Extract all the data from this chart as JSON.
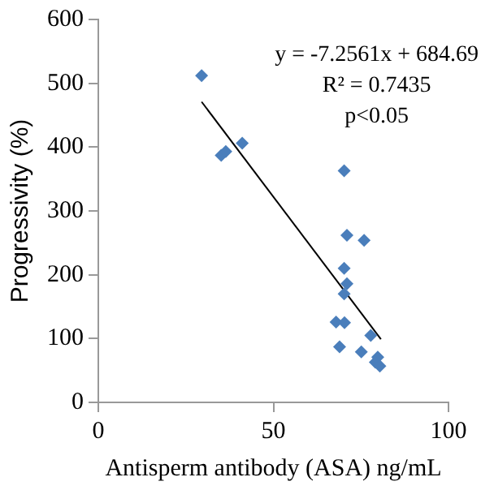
{
  "chart_data": {
    "type": "scatter",
    "xlabel": "Antisperm antibody (ASA) ng/mL",
    "ylabel": "Progressivity (%)",
    "annotations": [
      "y = -7.2561x + 684.69",
      "R² = 0.7435",
      "p<0.05"
    ],
    "xlim": [
      0,
      100
    ],
    "xticks": [
      0,
      50,
      100
    ],
    "ylim": [
      0,
      600
    ],
    "yticks": [
      0,
      100,
      200,
      300,
      400,
      500,
      600
    ],
    "grid": false,
    "legend": false,
    "marker": "diamond",
    "series": [
      {
        "type": "scatter",
        "color": "#4a7ebb",
        "x": [
          29.5,
          35.1,
          36.4,
          41.1,
          70.2,
          71,
          75.9,
          70.2,
          71,
          70.2,
          67.9,
          70.3,
          77.8,
          68.9,
          75.1,
          79.8,
          79.1,
          80.4
        ],
        "values": [
          512,
          387,
          393,
          406,
          363,
          262,
          254,
          210,
          186,
          170,
          126,
          125,
          105,
          87,
          79,
          71,
          63,
          57
        ]
      },
      {
        "type": "line",
        "color": "#000000",
        "x": [
          29.5,
          80.7
        ],
        "values": [
          471,
          99
        ],
        "marker": "none"
      }
    ]
  }
}
